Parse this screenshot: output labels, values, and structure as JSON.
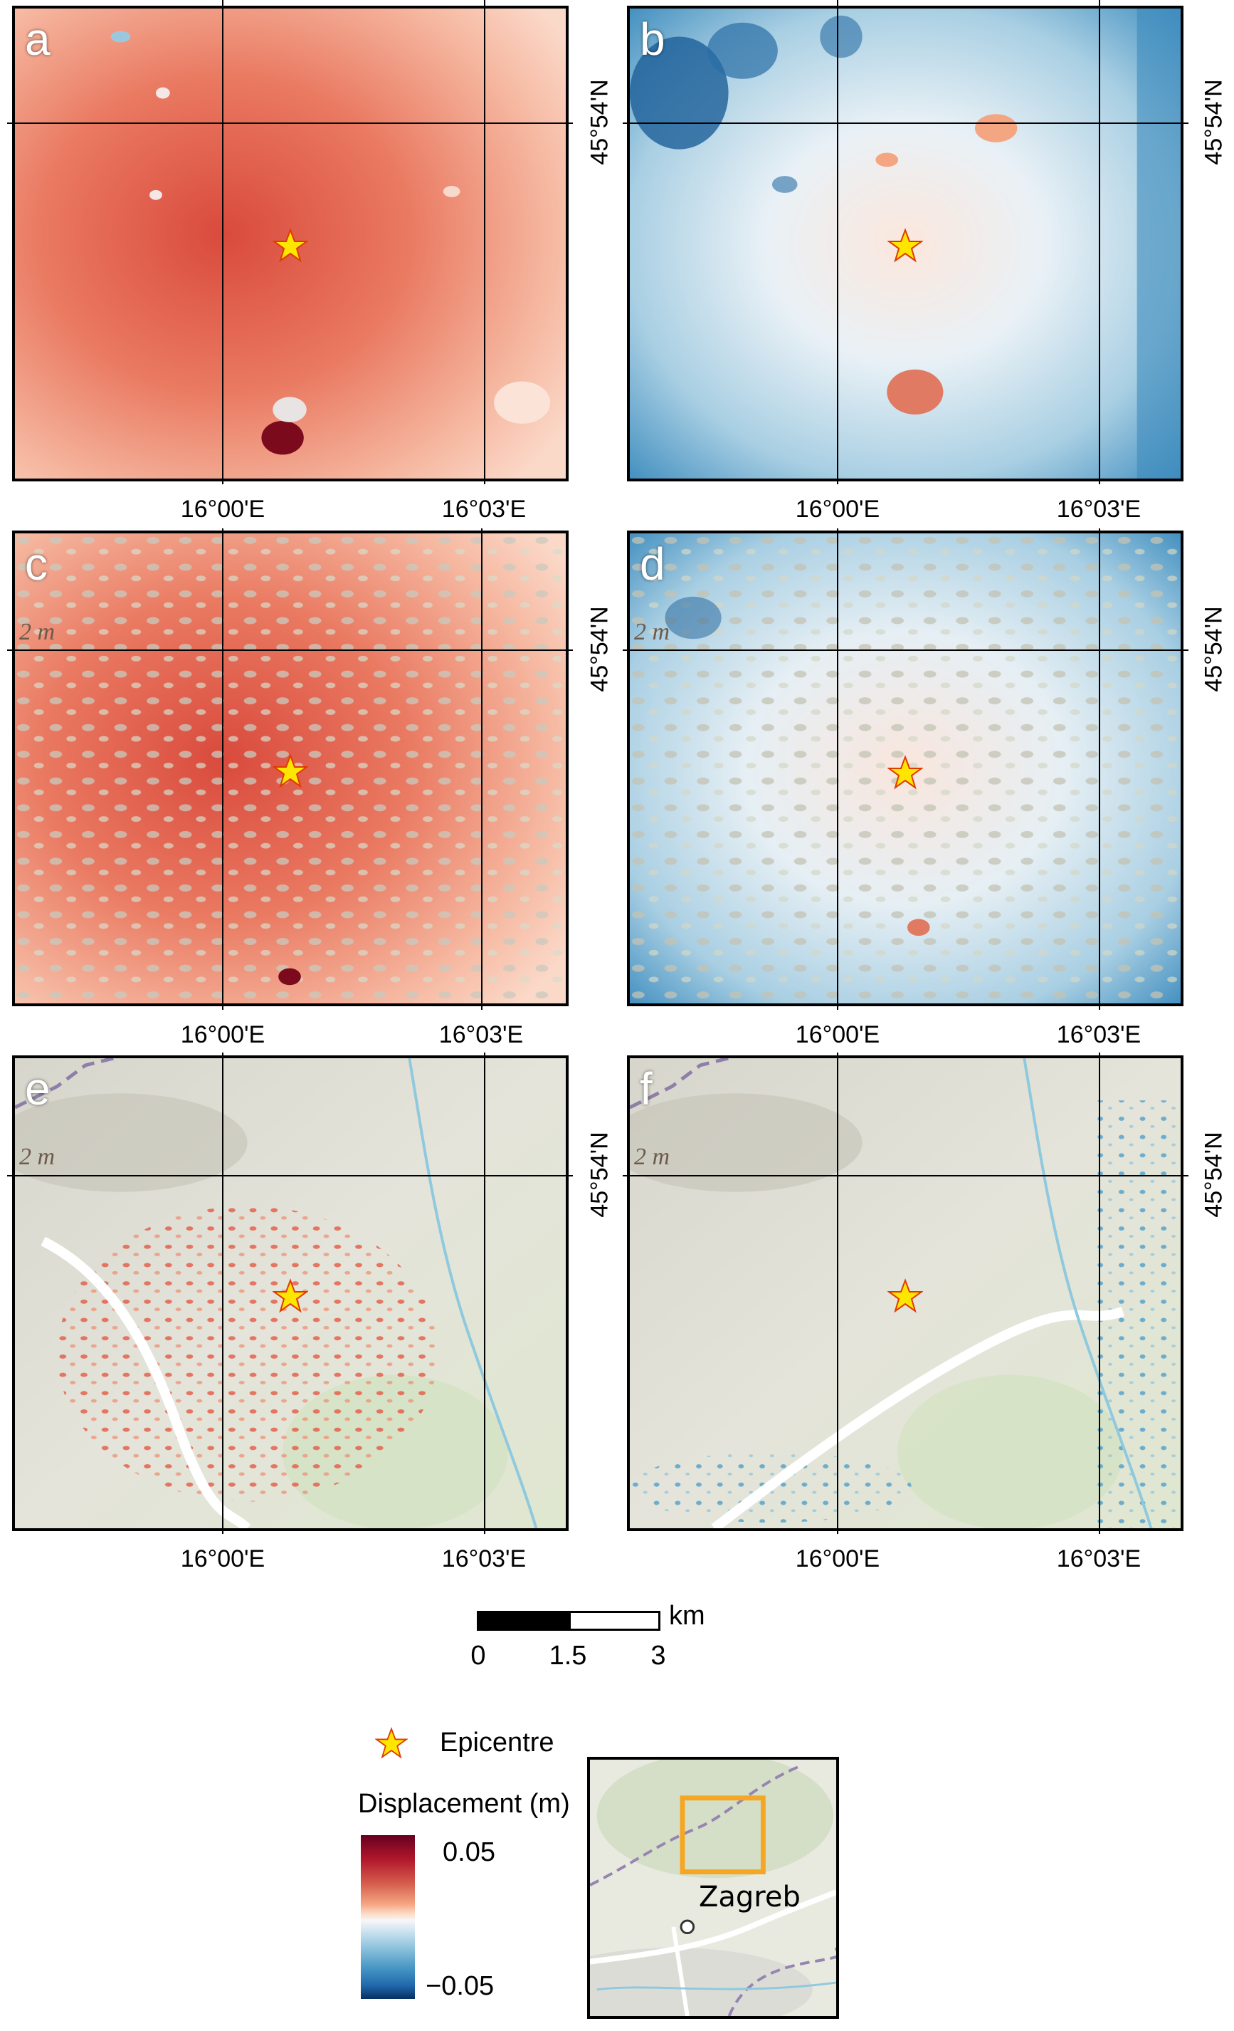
{
  "panels": [
    {
      "label": "a",
      "scheme": "red-full",
      "contour": ""
    },
    {
      "label": "b",
      "scheme": "blue-full",
      "contour": ""
    },
    {
      "label": "c",
      "scheme": "red-partial",
      "contour": "2 m"
    },
    {
      "label": "d",
      "scheme": "blue-partial",
      "contour": "2 m"
    },
    {
      "label": "e",
      "scheme": "red-sparse",
      "contour": "2 m"
    },
    {
      "label": "f",
      "scheme": "blue-sparse",
      "contour": "2 m"
    }
  ],
  "axes": {
    "lon_labels": [
      "16°00'E",
      "16°03'E"
    ],
    "lat_label": "45°54'N"
  },
  "scale_bar": {
    "unit": "km",
    "ticks": [
      "0",
      "1.5",
      "3"
    ]
  },
  "legend": {
    "epicentre_label": "Epicentre",
    "colorbar_title": "Displacement (m)",
    "colorbar_max": "0.05",
    "colorbar_min": "−0.05",
    "colors": {
      "max": "#67001f",
      "mid": "#f7f7f7",
      "min": "#053061"
    }
  },
  "inset": {
    "city_label": "Zagreb",
    "extent_color": "#f5a623"
  },
  "colors": {
    "epicentre_fill": "#ffe600",
    "epicentre_stroke": "#e03a00"
  }
}
